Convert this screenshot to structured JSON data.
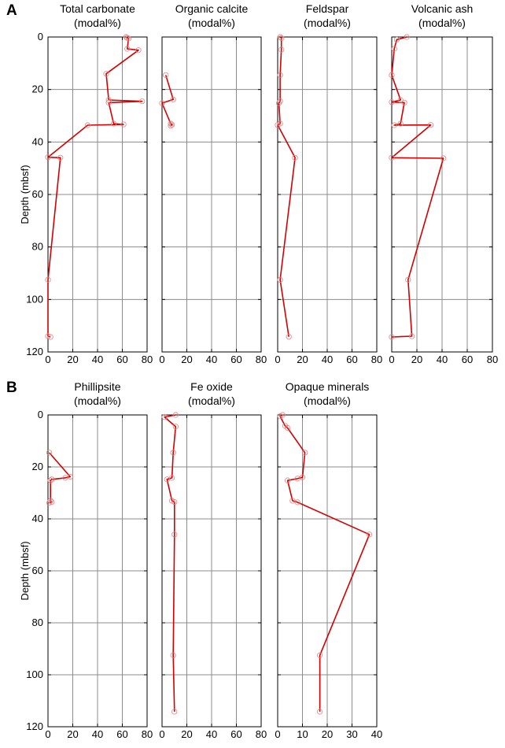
{
  "figure": {
    "panel_a_letter": "A",
    "panel_b_letter": "B"
  },
  "chart_data": [
    {
      "type": "line",
      "title": "Total carbonate",
      "subtitle": "(modal%)",
      "ylabel": "Depth (mbsf)",
      "xlim": [
        0,
        80
      ],
      "ylim": [
        0,
        120
      ],
      "y_inverted": true,
      "xticks": [
        0,
        20,
        40,
        60,
        80
      ],
      "yticks": [
        0,
        20,
        40,
        60,
        80,
        100,
        120
      ],
      "grid": true,
      "color": "#d40000",
      "points": [
        [
          63,
          0
        ],
        [
          64,
          0.3
        ],
        [
          65,
          0.6
        ],
        [
          64,
          4.5
        ],
        [
          73,
          5
        ],
        [
          47,
          14
        ],
        [
          49,
          24
        ],
        [
          76,
          24.5
        ],
        [
          49,
          25
        ],
        [
          53,
          33
        ],
        [
          61,
          33.3
        ],
        [
          32,
          33.6
        ],
        [
          0,
          45.8
        ],
        [
          10,
          46
        ],
        [
          0,
          92.5
        ],
        [
          0,
          114
        ],
        [
          2,
          114.3
        ]
      ]
    },
    {
      "type": "line",
      "title": "Organic calcite",
      "subtitle": "(modal%)",
      "xlim": [
        0,
        80
      ],
      "ylim": [
        0,
        120
      ],
      "y_inverted": true,
      "xticks": [
        0,
        20,
        40,
        60,
        80
      ],
      "grid": true,
      "color": "#d40000",
      "points": [
        [
          3,
          14.5
        ],
        [
          9,
          23.8
        ],
        [
          0,
          25.2
        ],
        [
          7,
          33
        ],
        [
          8,
          33.4
        ],
        [
          7,
          33.8
        ]
      ]
    },
    {
      "type": "line",
      "title": "Feldspar",
      "subtitle": "(modal%)",
      "xlim": [
        0,
        80
      ],
      "ylim": [
        0,
        120
      ],
      "y_inverted": true,
      "xticks": [
        0,
        20,
        40,
        60,
        80
      ],
      "grid": true,
      "color": "#d40000",
      "points": [
        [
          2,
          0
        ],
        [
          3,
          0.4
        ],
        [
          3,
          4.8
        ],
        [
          2,
          14.5
        ],
        [
          2,
          24.5
        ],
        [
          1,
          25.2
        ],
        [
          2,
          33
        ],
        [
          0,
          33.5
        ],
        [
          14,
          46
        ],
        [
          2,
          92.5
        ],
        [
          9,
          114.2
        ]
      ]
    },
    {
      "type": "line",
      "title": "Volcanic ash",
      "subtitle": "(modal%)",
      "xlim": [
        0,
        80
      ],
      "ylim": [
        0,
        120
      ],
      "y_inverted": true,
      "xticks": [
        0,
        20,
        40,
        60,
        80
      ],
      "grid": true,
      "color": "#d40000",
      "points": [
        [
          12,
          0
        ],
        [
          4,
          1
        ],
        [
          2,
          4.5
        ],
        [
          0,
          14.5
        ],
        [
          7,
          24
        ],
        [
          0,
          24.8
        ],
        [
          10,
          25
        ],
        [
          7,
          33
        ],
        [
          2,
          33.6
        ],
        [
          31,
          33.5
        ],
        [
          0,
          46
        ],
        [
          41,
          46.2
        ],
        [
          13,
          92.5
        ],
        [
          16,
          114
        ],
        [
          0,
          114.3
        ]
      ]
    },
    {
      "type": "line",
      "title": "Phillipsite",
      "subtitle": "(modal%)",
      "ylabel": "Depth (mbsf)",
      "xlim": [
        0,
        80
      ],
      "ylim": [
        0,
        120
      ],
      "y_inverted": true,
      "xticks": [
        0,
        20,
        40,
        60,
        80
      ],
      "yticks": [
        0,
        20,
        40,
        60,
        80,
        100,
        120
      ],
      "grid": true,
      "color": "#d40000",
      "points": [
        [
          1,
          14.5
        ],
        [
          18,
          23.8
        ],
        [
          14,
          24.2
        ],
        [
          3,
          24.8
        ],
        [
          2,
          25.2
        ],
        [
          2,
          33
        ],
        [
          3,
          33.5
        ],
        [
          1,
          33.8
        ]
      ]
    },
    {
      "type": "line",
      "title": "Fe oxide",
      "subtitle": "(modal%)",
      "xlim": [
        0,
        80
      ],
      "ylim": [
        0,
        120
      ],
      "y_inverted": true,
      "xticks": [
        0,
        20,
        40,
        60,
        80
      ],
      "grid": true,
      "color": "#d40000",
      "points": [
        [
          11,
          0
        ],
        [
          2,
          0.8
        ],
        [
          11,
          4.5
        ],
        [
          9,
          14.5
        ],
        [
          8,
          24.2
        ],
        [
          4,
          24.8
        ],
        [
          8,
          33
        ],
        [
          10,
          33.5
        ],
        [
          10,
          46
        ],
        [
          9,
          92.5
        ],
        [
          10,
          114.2
        ]
      ]
    },
    {
      "type": "line",
      "title": "Opaque minerals",
      "subtitle": "(modal%)",
      "xlim": [
        0,
        40
      ],
      "ylim": [
        0,
        120
      ],
      "y_inverted": true,
      "xticks": [
        0,
        10,
        20,
        30,
        40
      ],
      "grid": true,
      "color": "#d40000",
      "points": [
        [
          2,
          0
        ],
        [
          1,
          0.5
        ],
        [
          3,
          4.2
        ],
        [
          4,
          5
        ],
        [
          11,
          14.5
        ],
        [
          10,
          24
        ],
        [
          8,
          24.5
        ],
        [
          4,
          25.2
        ],
        [
          6,
          33
        ],
        [
          8,
          33.6
        ],
        [
          37,
          46
        ],
        [
          17,
          92.5
        ],
        [
          17,
          114.2
        ]
      ]
    }
  ]
}
